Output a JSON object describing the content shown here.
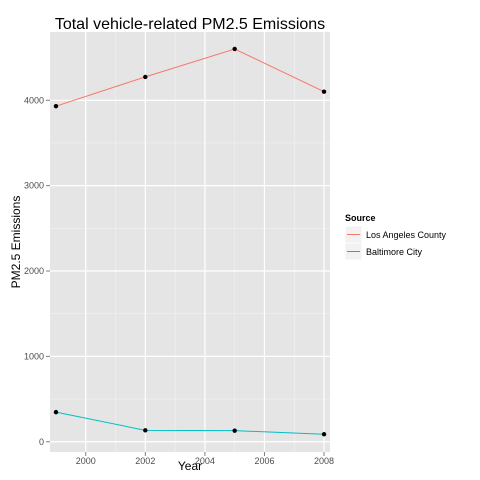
{
  "chart_data": {
    "type": "line",
    "title": "Total vehicle-related PM2.5 Emissions",
    "xlabel": "Year",
    "ylabel": "PM2.5 Emissions",
    "x": [
      1999,
      2002,
      2005,
      2008
    ],
    "xlim": [
      1998.8,
      2008.2
    ],
    "ylim": [
      -120,
      4800
    ],
    "xticks": [
      2000,
      2002,
      2004,
      2006,
      2008
    ],
    "yticks": [
      0,
      1000,
      2000,
      3000,
      4000
    ],
    "grid": true,
    "legend": {
      "title": "Source",
      "placement": "right"
    },
    "series": [
      {
        "name": "Los Angeles County",
        "color": "#F8766D",
        "values": [
          3931,
          4274,
          4601,
          4101
        ]
      },
      {
        "name": "Baltimore City",
        "color": "#00BFC4",
        "values": [
          347,
          134,
          130,
          88
        ]
      }
    ]
  }
}
